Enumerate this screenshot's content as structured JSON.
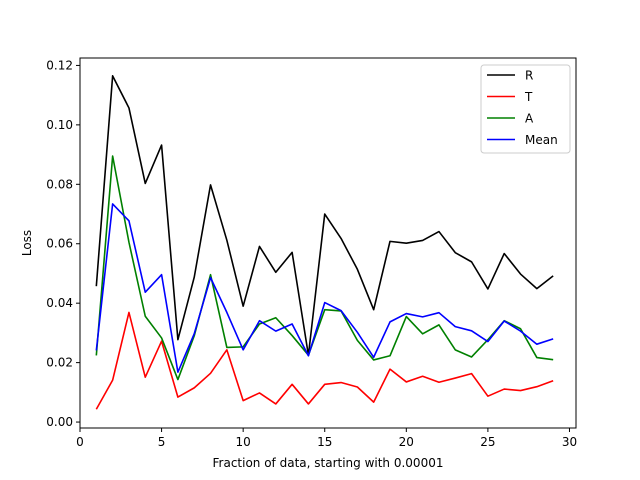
{
  "chart_data": {
    "type": "line",
    "title": "",
    "xlabel": "Fraction of data, starting with 0.00001",
    "ylabel": "Loss",
    "xlim": [
      0,
      30.4
    ],
    "ylim": [
      -0.002,
      0.1225
    ],
    "xticks": [
      0,
      5,
      10,
      15,
      20,
      25,
      30
    ],
    "yticks": [
      0.0,
      0.02,
      0.04,
      0.06,
      0.08,
      0.1,
      0.12
    ],
    "ytick_labels": [
      "0.00",
      "0.02",
      "0.04",
      "0.06",
      "0.08",
      "0.10",
      "0.12"
    ],
    "grid": false,
    "legend_position": "top-right",
    "x": [
      1,
      2,
      3,
      4,
      5,
      6,
      7,
      8,
      9,
      10,
      11,
      12,
      13,
      14,
      15,
      16,
      17,
      18,
      19,
      20,
      21,
      22,
      23,
      24,
      25,
      26,
      27,
      28,
      29
    ],
    "series": [
      {
        "name": "R",
        "color": "#000000",
        "values": [
          0.0457,
          0.1165,
          0.1057,
          0.0803,
          0.0932,
          0.0277,
          0.0487,
          0.0798,
          0.0612,
          0.039,
          0.0591,
          0.0504,
          0.0571,
          0.0225,
          0.07,
          0.0618,
          0.0514,
          0.0378,
          0.0608,
          0.0602,
          0.0611,
          0.0641,
          0.057,
          0.0539,
          0.0448,
          0.0567,
          0.0498,
          0.0449,
          0.0492
        ]
      },
      {
        "name": "T",
        "color": "#ff0000",
        "values": [
          0.0043,
          0.0141,
          0.0369,
          0.0151,
          0.0272,
          0.0084,
          0.0115,
          0.0164,
          0.0243,
          0.0072,
          0.0098,
          0.0061,
          0.0127,
          0.0061,
          0.0127,
          0.0133,
          0.0118,
          0.0067,
          0.0178,
          0.0135,
          0.0154,
          0.0134,
          0.0148,
          0.0163,
          0.0087,
          0.0111,
          0.0106,
          0.0119,
          0.0139
        ]
      },
      {
        "name": "A",
        "color": "#008000",
        "values": [
          0.0224,
          0.0895,
          0.0605,
          0.0356,
          0.0283,
          0.0143,
          0.029,
          0.0496,
          0.0251,
          0.0253,
          0.033,
          0.0351,
          0.0291,
          0.0225,
          0.0378,
          0.0374,
          0.0275,
          0.0209,
          0.0223,
          0.0355,
          0.0297,
          0.0327,
          0.0243,
          0.0219,
          0.0277,
          0.0341,
          0.0314,
          0.0217,
          0.021
        ]
      },
      {
        "name": "Mean",
        "color": "#0000ff",
        "values": [
          0.0241,
          0.0734,
          0.0677,
          0.0437,
          0.0496,
          0.0168,
          0.0297,
          0.0486,
          0.0369,
          0.0243,
          0.0341,
          0.0306,
          0.033,
          0.0223,
          0.0402,
          0.0375,
          0.0302,
          0.0218,
          0.0337,
          0.0365,
          0.0354,
          0.0368,
          0.0321,
          0.0307,
          0.0271,
          0.034,
          0.0306,
          0.0262,
          0.028
        ]
      }
    ]
  }
}
